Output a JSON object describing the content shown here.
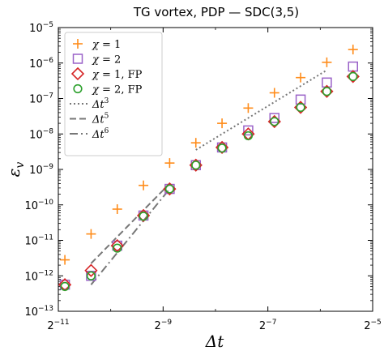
{
  "chart_data": {
    "type": "scatter",
    "title": "TG vortex, PDP — SDC(3,5)",
    "xlabel": "Δt",
    "ylabel": "ε_v",
    "x_scale": "log2",
    "y_scale": "log10",
    "xlim": [
      -11,
      -5
    ],
    "ylim": [
      -13,
      -5
    ],
    "x_ticks": [
      {
        "exp": -11,
        "base": "2",
        "sup": "−11"
      },
      {
        "exp": -9,
        "base": "2",
        "sup": "−9"
      },
      {
        "exp": -7,
        "base": "2",
        "sup": "−7"
      },
      {
        "exp": -5,
        "base": "2",
        "sup": "−5"
      }
    ],
    "y_ticks": [
      {
        "exp": -13,
        "base": "10",
        "sup": "−13"
      },
      {
        "exp": -12,
        "base": "10",
        "sup": "−12"
      },
      {
        "exp": -11,
        "base": "10",
        "sup": "−11"
      },
      {
        "exp": -10,
        "base": "10",
        "sup": "−10"
      },
      {
        "exp": -9,
        "base": "10",
        "sup": "−9"
      },
      {
        "exp": -8,
        "base": "10",
        "sup": "−8"
      },
      {
        "exp": -7,
        "base": "10",
        "sup": "−7"
      },
      {
        "exp": -6,
        "base": "10",
        "sup": "−6"
      },
      {
        "exp": -5,
        "base": "10",
        "sup": "−5"
      }
    ],
    "x": [
      -10.875,
      -10.375,
      -9.875,
      -9.375,
      -8.875,
      -8.375,
      -7.875,
      -7.375,
      -6.875,
      -6.375,
      -5.875,
      -5.375
    ],
    "series": [
      {
        "name_greek": "χ",
        "name_suffix": " = 1",
        "marker": "plus",
        "color": "#ff8c1a",
        "values": [
          -11.55,
          -10.82,
          -10.12,
          -9.45,
          -8.82,
          -8.25,
          -7.7,
          -7.27,
          -6.84,
          -6.41,
          -5.98,
          -5.62
        ]
      },
      {
        "name_greek": "χ",
        "name_suffix": " = 2",
        "marker": "square",
        "color": "#9a62c8",
        "values": [
          -12.25,
          -12.0,
          -11.15,
          -10.3,
          -9.55,
          -8.88,
          -8.38,
          -7.9,
          -7.55,
          -7.03,
          -6.55,
          -6.1
        ]
      },
      {
        "name_greek": "χ",
        "name_suffix": " = 1, FP",
        "marker": "diamond",
        "color": "#d62728",
        "values": [
          -12.25,
          -11.85,
          -11.15,
          -10.3,
          -9.55,
          -8.88,
          -8.38,
          -8.0,
          -7.65,
          -7.25,
          -6.8,
          -6.38
        ]
      },
      {
        "name_greek": "χ",
        "name_suffix": " = 2, FP",
        "marker": "circle",
        "color": "#2ca02c",
        "values": [
          -12.3,
          -12.0,
          -11.22,
          -10.32,
          -9.55,
          -8.88,
          -8.4,
          -8.05,
          -7.65,
          -7.25,
          -6.8,
          -6.38
        ]
      }
    ],
    "reference_lines": [
      {
        "name": "Δt",
        "order": "3",
        "style": "dotted",
        "color": "#777777",
        "x": [
          -8.375,
          -5.875
        ],
        "y": [
          -8.45,
          -6.2
        ]
      },
      {
        "name": "Δt",
        "order": "5",
        "style": "dashed",
        "color": "#777777",
        "x": [
          -10.375,
          -8.875
        ],
        "y": [
          -11.65,
          -9.4
        ]
      },
      {
        "name": "Δt",
        "order": "6",
        "style": "dashdot",
        "color": "#777777",
        "x": [
          -10.375,
          -8.875
        ],
        "y": [
          -12.25,
          -9.55
        ]
      }
    ],
    "legend_position": "top-left",
    "grid": false
  }
}
